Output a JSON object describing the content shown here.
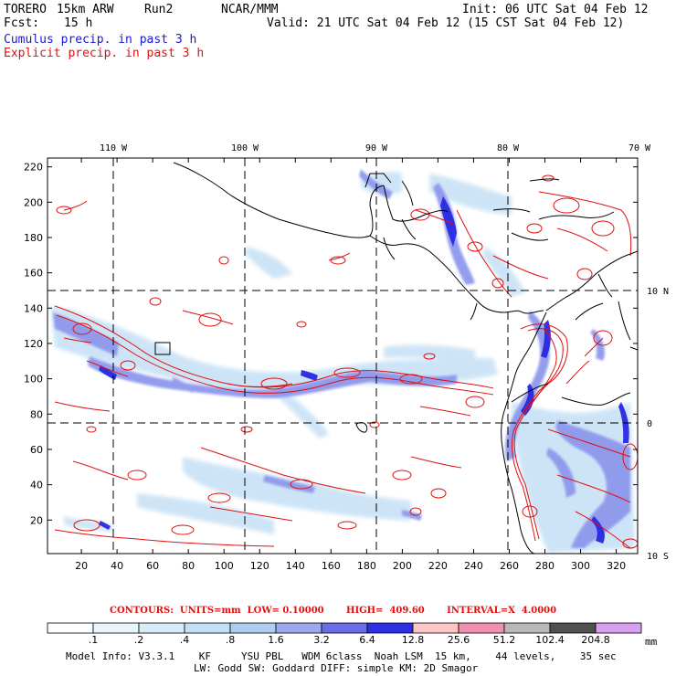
{
  "header": {
    "model": "TORERO",
    "resolution": "15km ARW",
    "run": "Run2",
    "org": "NCAR/MMM",
    "init": "Init: 06 UTC Sat 04 Feb 12",
    "fcst_label": "Fcst:",
    "fcst_value": "15 h",
    "valid": "Valid: 21 UTC Sat 04 Feb 12 (15 CST Sat 04 Feb 12)",
    "field1": "Cumulus precip. in past 3 h",
    "field2": "Explicit precip. in past 3 h"
  },
  "map": {
    "lon_labels": [
      {
        "text": "110 W",
        "lon": -110
      },
      {
        "text": "100 W",
        "lon": -100
      },
      {
        "text": "90 W",
        "lon": -90
      },
      {
        "text": "80 W",
        "lon": -80
      },
      {
        "text": "70 W",
        "lon": -70
      }
    ],
    "lat_labels": [
      {
        "text": "10 N",
        "lat": 10
      },
      {
        "text": "0",
        "lat": 0
      },
      {
        "text": "10 S",
        "lat": -10
      }
    ],
    "y_ticks": [
      20,
      40,
      60,
      80,
      100,
      120,
      140,
      160,
      180,
      200,
      220
    ],
    "x_ticks": [
      20,
      40,
      60,
      80,
      100,
      120,
      140,
      160,
      180,
      200,
      220,
      240,
      260,
      280,
      300,
      320
    ],
    "grid_range": {
      "x": [
        1,
        332
      ],
      "y": [
        1,
        225
      ]
    },
    "colors": {
      "cumulus": "#2222ee",
      "explicit": "#e01010",
      "grid": "#000000"
    }
  },
  "colorbar": {
    "thresholds": [
      ".1",
      ".2",
      ".4",
      ".8",
      "1.6",
      "3.2",
      "6.4",
      "12.8",
      "25.6",
      "51.2",
      "102.4",
      "204.8"
    ],
    "colors": [
      "#ffffff",
      "#eaf4fb",
      "#d8ecf8",
      "#c4e0f4",
      "#aacdf0",
      "#9ea8ee",
      "#6a6ce8",
      "#2e2ee6",
      "#ffc4c8",
      "#f090b0",
      "#b8b8b8",
      "#505050",
      "#d8a0f0"
    ],
    "unit": "mm"
  },
  "contours_info": {
    "text": "CONTOURS:  UNITS=mm  LOW= 0.10000       HIGH=  409.60       INTERVAL=X  4.0000"
  },
  "footer": {
    "line1": "Model Info: V3.3.1    KF     YSU PBL   WDM 6class  Noah LSM  15 km,    44 levels,    35 sec",
    "line2": "LW: Godd SW: Goddard DIFF: simple KM: 2D Smagor"
  }
}
